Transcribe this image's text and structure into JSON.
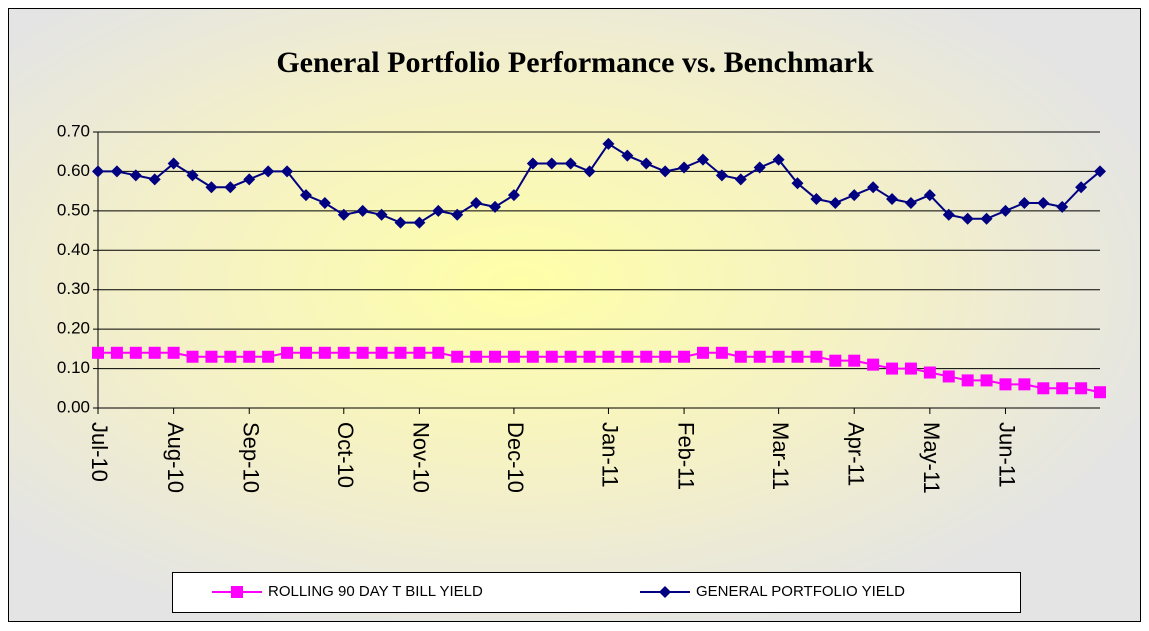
{
  "chart_data": {
    "type": "line",
    "title": "General Portfolio Performance vs. Benchmark",
    "categories": [
      "Jul-10",
      null,
      null,
      null,
      "Aug-10",
      null,
      null,
      null,
      "Sep-10",
      null,
      null,
      null,
      null,
      "Oct-10",
      null,
      null,
      null,
      "Nov-10",
      null,
      null,
      null,
      null,
      "Dec-10",
      null,
      null,
      null,
      null,
      "Jan-11",
      null,
      null,
      null,
      "Feb-11",
      null,
      null,
      null,
      null,
      "Mar-11",
      null,
      null,
      null,
      "Apr-11",
      null,
      null,
      null,
      "May-11",
      null,
      null,
      null,
      "Jun-11",
      null,
      null,
      null,
      null,
      null
    ],
    "series": [
      {
        "name": "ROLLING 90 DAY T BILL YIELD",
        "color": "#ff00ff",
        "marker": "square",
        "values": [
          0.14,
          0.14,
          0.14,
          0.14,
          0.14,
          0.13,
          0.13,
          0.13,
          0.13,
          0.13,
          0.14,
          0.14,
          0.14,
          0.14,
          0.14,
          0.14,
          0.14,
          0.14,
          0.14,
          0.13,
          0.13,
          0.13,
          0.13,
          0.13,
          0.13,
          0.13,
          0.13,
          0.13,
          0.13,
          0.13,
          0.13,
          0.13,
          0.14,
          0.14,
          0.13,
          0.13,
          0.13,
          0.13,
          0.13,
          0.12,
          0.12,
          0.11,
          0.1,
          0.1,
          0.09,
          0.08,
          0.07,
          0.07,
          0.06,
          0.06,
          0.05,
          0.05,
          0.05,
          0.04
        ]
      },
      {
        "name": "GENERAL PORTFOLIO YIELD",
        "color": "#000080",
        "marker": "diamond",
        "values": [
          0.6,
          0.6,
          0.59,
          0.58,
          0.62,
          0.59,
          0.56,
          0.56,
          0.58,
          0.6,
          0.6,
          0.54,
          0.52,
          0.49,
          0.5,
          0.49,
          0.47,
          0.47,
          0.5,
          0.49,
          0.52,
          0.51,
          0.54,
          0.62,
          0.62,
          0.62,
          0.6,
          0.67,
          0.64,
          0.62,
          0.6,
          0.61,
          0.63,
          0.59,
          0.58,
          0.61,
          0.63,
          0.57,
          0.53,
          0.52,
          0.54,
          0.56,
          0.53,
          0.52,
          0.54,
          0.49,
          0.48,
          0.48,
          0.5,
          0.52,
          0.52,
          0.51,
          0.56,
          0.6
        ]
      }
    ],
    "ylim": [
      0,
      0.7
    ],
    "yticks": [
      {
        "value": 0,
        "label": "0.00"
      },
      {
        "value": 0.1,
        "label": "0.10"
      },
      {
        "value": 0.2,
        "label": "0.20"
      },
      {
        "value": 0.3,
        "label": "0.30"
      },
      {
        "value": 0.4,
        "label": "0.40"
      },
      {
        "value": 0.5,
        "label": "0.50"
      },
      {
        "value": 0.6,
        "label": "0.60"
      },
      {
        "value": 0.7,
        "label": "0.70"
      }
    ],
    "grid": true,
    "legend": "bottom"
  }
}
